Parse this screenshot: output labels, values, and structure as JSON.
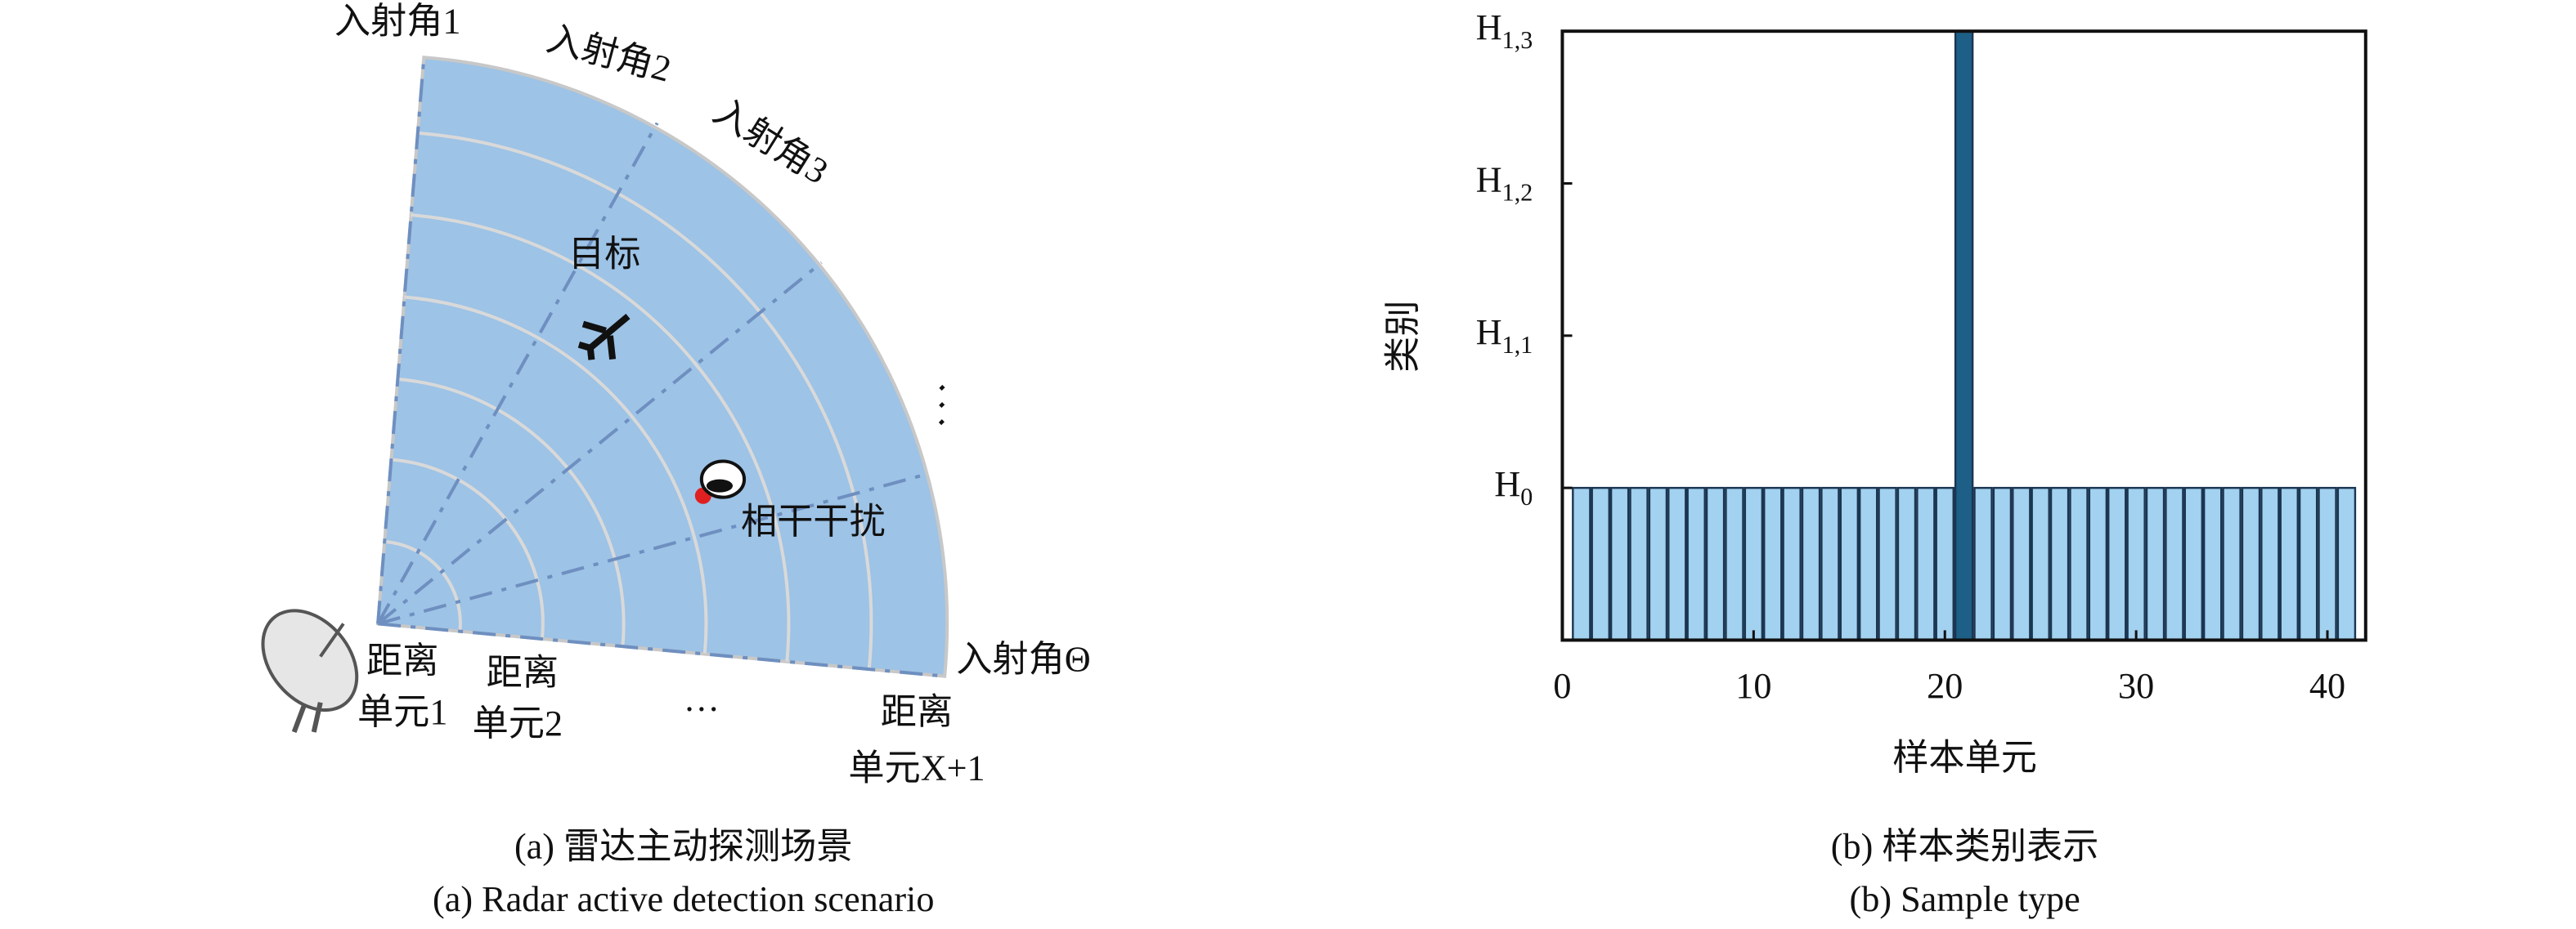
{
  "diagram": {
    "angle_labels": [
      "入射角1",
      "入射角2",
      "入射角3",
      "入射角Θ"
    ],
    "target": "目标",
    "jamming": "相干干扰",
    "range_cells": [
      [
        "距离",
        "单元1"
      ],
      [
        "距离",
        "单元2"
      ],
      [
        "距离",
        "单元X+1"
      ]
    ],
    "range_ellipsis": "…",
    "angle_ellipsis": "⋱",
    "caption_cn": "(a) 雷达主动探测场景",
    "caption_en": "(a) Radar active detection scenario"
  },
  "chart_data": {
    "type": "bar",
    "x_label": "样本单元",
    "y_label": "类别",
    "caption_cn": "(b) 样本类别表示",
    "caption_en": "(b) Sample type",
    "x": [
      1,
      2,
      3,
      4,
      5,
      6,
      7,
      8,
      9,
      10,
      11,
      12,
      13,
      14,
      15,
      16,
      17,
      18,
      19,
      20,
      21,
      22,
      23,
      24,
      25,
      26,
      27,
      28,
      29,
      30,
      31,
      32,
      33,
      34,
      35,
      36,
      37,
      38,
      39,
      40,
      41
    ],
    "values": [
      0,
      0,
      0,
      0,
      0,
      0,
      0,
      0,
      0,
      0,
      0,
      0,
      0,
      0,
      0,
      0,
      0,
      0,
      0,
      0,
      3,
      0,
      0,
      0,
      0,
      0,
      0,
      0,
      0,
      0,
      0,
      0,
      0,
      0,
      0,
      0,
      0,
      0,
      0,
      0,
      0
    ],
    "colors": [
      "#a3d1f0",
      "#a3d1f0",
      "#a3d1f0",
      "#a3d1f0",
      "#a3d1f0",
      "#a3d1f0",
      "#a3d1f0",
      "#a3d1f0",
      "#a3d1f0",
      "#a3d1f0",
      "#a3d1f0",
      "#a3d1f0",
      "#a3d1f0",
      "#a3d1f0",
      "#a3d1f0",
      "#a3d1f0",
      "#a3d1f0",
      "#a3d1f0",
      "#a3d1f0",
      "#a3d1f0",
      "#1d5f86",
      "#a3d1f0",
      "#a3d1f0",
      "#a3d1f0",
      "#a3d1f0",
      "#a3d1f0",
      "#a3d1f0",
      "#a3d1f0",
      "#a3d1f0",
      "#a3d1f0",
      "#a3d1f0",
      "#a3d1f0",
      "#a3d1f0",
      "#a3d1f0",
      "#a3d1f0",
      "#a3d1f0",
      "#a3d1f0",
      "#a3d1f0",
      "#a3d1f0",
      "#a3d1f0",
      "#a3d1f0"
    ],
    "xlim": [
      0,
      42
    ],
    "xticks": [
      0,
      10,
      20,
      30,
      40
    ],
    "ylim": [
      -1,
      3
    ],
    "yticks": [
      {
        "value": 0,
        "label": "H0"
      },
      {
        "value": 1,
        "label": "H1,1"
      },
      {
        "value": 2,
        "label": "H1,2"
      },
      {
        "value": 3,
        "label": "H1,3"
      }
    ]
  }
}
